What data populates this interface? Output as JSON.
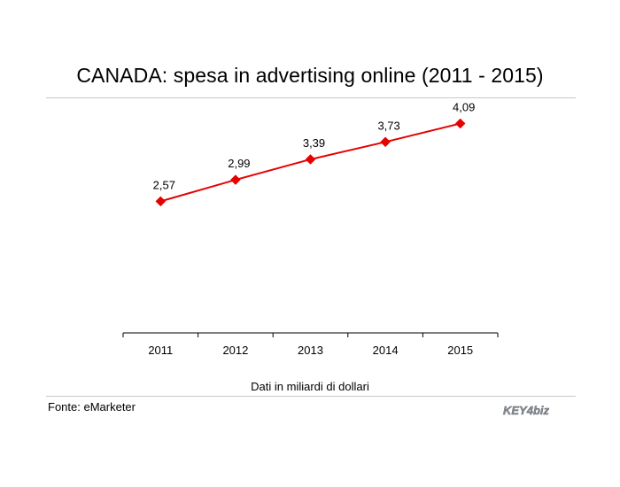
{
  "title": "CANADA: spesa in advertising online (2011 - 2015)",
  "unit_note": "Dati in miliardi di dollari",
  "source": "Fonte: eMarketer",
  "logo_text": "KEY4biz",
  "colors": {
    "series": "#e60000",
    "axis": "#000000",
    "rule": "#c8c8c8",
    "logo": "#8a8f96"
  },
  "chart_data": {
    "type": "line",
    "categories": [
      "2011",
      "2012",
      "2013",
      "2014",
      "2015"
    ],
    "series": [
      {
        "values": [
          2.57,
          2.99,
          3.39,
          3.73,
          4.09
        ],
        "labels": [
          "2,57",
          "2,99",
          "3,39",
          "3,73",
          "4,09"
        ],
        "marker": "diamond"
      }
    ],
    "ylim": [
      0,
      4.6
    ],
    "grid": false,
    "legend": "none"
  }
}
